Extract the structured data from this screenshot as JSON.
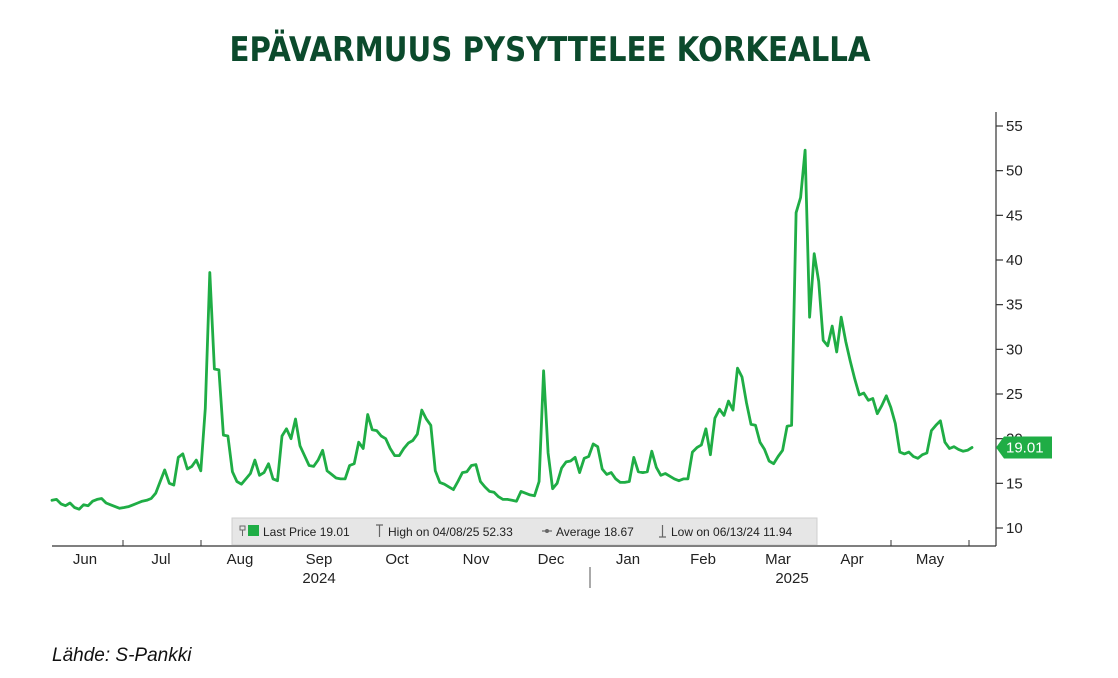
{
  "title": "EPÄVARMUUS PYSYTTELEE KORKEALLA",
  "source": "Lähde: S-Pankki",
  "colors": {
    "title": "#0b4a2c",
    "line": "#1fad45",
    "badge": "#1fad45"
  },
  "chart_data": {
    "type": "line",
    "ylim": [
      10,
      55
    ],
    "yticks": [
      "10",
      "15",
      "20",
      "25",
      "30",
      "35",
      "40",
      "45",
      "50",
      "55"
    ],
    "y_axis_side": "right",
    "x_month_labels": [
      "Jun",
      "Jul",
      "Aug",
      "Sep",
      "Oct",
      "Nov",
      "Dec",
      "Jan",
      "Feb",
      "Mar",
      "Apr",
      "May"
    ],
    "x_year_labels": [
      "2024",
      "2025"
    ],
    "series": [
      {
        "name": "Last Price",
        "values": [
          13.1,
          13.2,
          12.7,
          12.5,
          12.8,
          12.3,
          12.1,
          12.6,
          12.5,
          13.0,
          13.2,
          13.3,
          12.8,
          12.6,
          12.4,
          12.2,
          12.3,
          12.4,
          12.6,
          12.8,
          13.0,
          13.1,
          13.3,
          13.9,
          15.2,
          16.5,
          15.0,
          14.8,
          17.9,
          18.3,
          16.6,
          16.9,
          17.6,
          16.4,
          23.4,
          38.6,
          27.8,
          27.7,
          20.4,
          20.3,
          16.3,
          15.2,
          14.9,
          15.5,
          16.1,
          17.6,
          15.9,
          16.2,
          17.2,
          15.5,
          15.3,
          20.3,
          21.1,
          20.0,
          22.2,
          19.2,
          18.1,
          17.0,
          16.9,
          17.6,
          18.7,
          16.4,
          16.0,
          15.6,
          15.5,
          15.5,
          17.0,
          17.2,
          19.6,
          18.9,
          22.7,
          21.0,
          20.9,
          20.3,
          20.0,
          18.9,
          18.1,
          18.1,
          18.9,
          19.5,
          19.8,
          20.5,
          23.2,
          22.2,
          21.5,
          16.4,
          15.1,
          14.9,
          14.6,
          14.3,
          15.2,
          16.2,
          16.3,
          17.0,
          17.1,
          15.2,
          14.6,
          14.1,
          14.0,
          13.5,
          13.2,
          13.2,
          13.1,
          13.0,
          14.1,
          13.9,
          13.7,
          13.6,
          15.2,
          27.6,
          18.4,
          14.4,
          15.0,
          16.7,
          17.4,
          17.5,
          17.9,
          16.2,
          17.8,
          18.0,
          19.4,
          19.1,
          16.6,
          16.0,
          16.2,
          15.5,
          15.1,
          15.1,
          15.2,
          17.9,
          16.3,
          16.2,
          16.3,
          18.6,
          16.8,
          15.9,
          16.1,
          15.8,
          15.5,
          15.3,
          15.5,
          15.5,
          18.5,
          19.0,
          19.3,
          21.1,
          18.2,
          22.3,
          23.3,
          22.6,
          24.2,
          23.2,
          27.9,
          26.9,
          24.0,
          21.6,
          21.5,
          19.6,
          18.8,
          17.5,
          17.2,
          18.0,
          18.7,
          21.4,
          21.5,
          45.3,
          47.0,
          52.3,
          33.6,
          40.7,
          37.6,
          31.0,
          30.4,
          32.6,
          29.7,
          33.6,
          30.9,
          28.7,
          26.7,
          24.9,
          25.1,
          24.3,
          24.5,
          22.8,
          23.7,
          24.8,
          23.5,
          21.7,
          18.5,
          18.3,
          18.5,
          18.0,
          17.8,
          18.2,
          18.4,
          20.9,
          21.5,
          22.0,
          19.6,
          18.9,
          19.1,
          18.8,
          18.6,
          18.7,
          19.01
        ]
      }
    ],
    "last_value_badge": "19.01",
    "legend": [
      {
        "icon": "last",
        "text": "Last Price 19.01"
      },
      {
        "icon": "high",
        "text": "High on 04/08/25 52.33"
      },
      {
        "icon": "avg",
        "text": "Average 18.67"
      },
      {
        "icon": "low",
        "text": "Low on 06/13/24 11.94"
      }
    ],
    "grid": false,
    "legend_placement": "bottom-center"
  }
}
